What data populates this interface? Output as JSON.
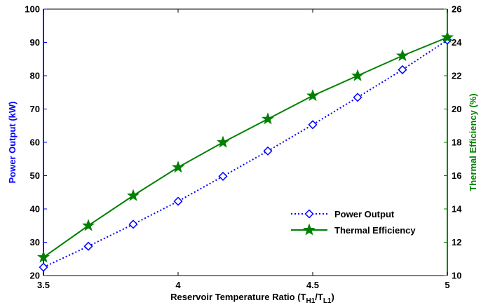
{
  "chart_data": {
    "type": "line",
    "x": [
      3.5,
      3.6667,
      3.8333,
      4.0,
      4.1667,
      4.3333,
      4.5,
      4.6667,
      4.8333,
      5.0
    ],
    "series": [
      {
        "name": "Power Output",
        "axis": "left",
        "color": "#0000ff",
        "line_style": "dotted",
        "marker": "diamond",
        "values": [
          22.5,
          28.8,
          35.4,
          42.3,
          49.8,
          57.4,
          65.3,
          73.5,
          81.8,
          90.7
        ]
      },
      {
        "name": "Thermal Efficiency",
        "axis": "right",
        "color": "#008000",
        "line_style": "solid",
        "marker": "star",
        "values": [
          11.1,
          13.0,
          14.8,
          16.5,
          18.0,
          19.4,
          20.8,
          22.0,
          23.2,
          24.3
        ]
      }
    ],
    "xlabel_main": "Reservoir Temperature Ratio (T",
    "xlabel_sub1": "H1",
    "xlabel_mid": "/T",
    "xlabel_sub2": "L1",
    "xlabel_end": ")",
    "ylabel_left": "Power Output (kW)",
    "ylabel_right": "Thermal Efficiency (%)",
    "xlim": [
      3.5,
      5
    ],
    "ylim_left": [
      20,
      100
    ],
    "ylim_right": [
      10,
      26
    ],
    "xticks": [
      "3.5",
      "4",
      "4.5",
      "5"
    ],
    "xtick_values": [
      3.5,
      4,
      4.5,
      5
    ],
    "yticks_left": [
      "20",
      "30",
      "40",
      "50",
      "60",
      "70",
      "80",
      "90",
      "100"
    ],
    "yticks_left_values": [
      20,
      30,
      40,
      50,
      60,
      70,
      80,
      90,
      100
    ],
    "yticks_right": [
      "10",
      "12",
      "14",
      "16",
      "18",
      "20",
      "22",
      "24",
      "26"
    ],
    "yticks_right_values": [
      10,
      12,
      14,
      16,
      18,
      20,
      22,
      24,
      26
    ],
    "legend_position": "lower-right",
    "grid": false,
    "colors": {
      "left_axis": "#0000ff",
      "right_axis": "#008000",
      "frame": "#000000"
    }
  }
}
